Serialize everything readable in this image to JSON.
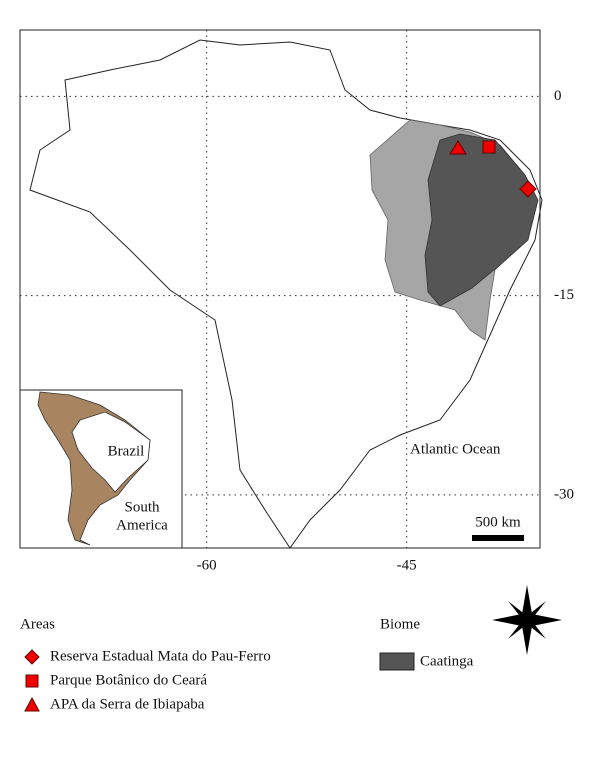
{
  "map": {
    "lat_ticks": [
      0,
      -15,
      -30
    ],
    "lon_ticks": [
      -60,
      -45
    ],
    "xlim": [
      -74,
      -35
    ],
    "ylim": [
      -34,
      5
    ],
    "labels": {
      "ocean": "Atlantic Ocean",
      "scale": "500 km"
    },
    "inset": {
      "country": "Brazil",
      "continent_line1": "South",
      "continent_line2": "America"
    }
  },
  "legend": {
    "areas": {
      "title": "Areas",
      "items": [
        "Reserva Estadual Mata do Pau-Ferro",
        "Parque Botânico do Ceará",
        "APA da Serra de Ibiapaba"
      ]
    },
    "biome": {
      "title": "Biome",
      "items": [
        "Caatinga"
      ]
    }
  }
}
